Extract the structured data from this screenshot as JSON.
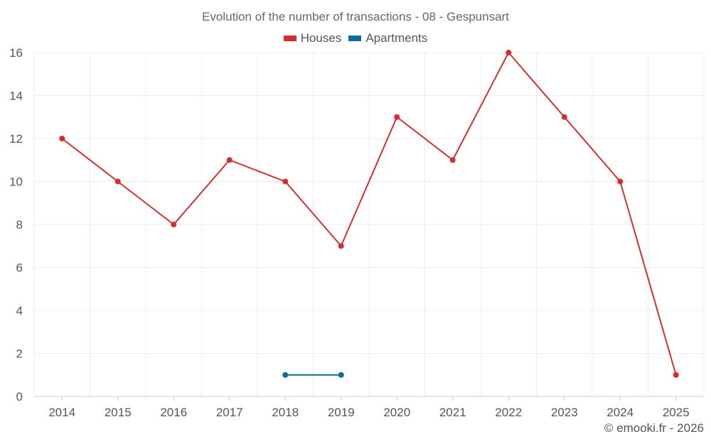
{
  "chart_data": {
    "type": "line",
    "title": "Evolution of the number of transactions - 08 - Gespunsart",
    "categories": [
      "2014",
      "2015",
      "2016",
      "2017",
      "2018",
      "2019",
      "2020",
      "2021",
      "2022",
      "2023",
      "2024",
      "2025"
    ],
    "series": [
      {
        "name": "Houses",
        "color": "#d32f2f",
        "values": [
          12,
          10,
          8,
          11,
          10,
          7,
          13,
          11,
          16,
          13,
          10,
          1
        ]
      },
      {
        "name": "Apartments",
        "color": "#0d6c9c",
        "values": [
          null,
          null,
          null,
          null,
          1,
          1,
          null,
          null,
          null,
          null,
          null,
          null
        ]
      }
    ],
    "yticks": [
      0,
      2,
      4,
      6,
      8,
      10,
      12,
      14,
      16
    ],
    "ylim": [
      0,
      16
    ],
    "xlabel": "",
    "ylabel": "",
    "grid": true,
    "legend": "top-center"
  },
  "footer": {
    "copyright": "© emooki.fr - 2026"
  }
}
